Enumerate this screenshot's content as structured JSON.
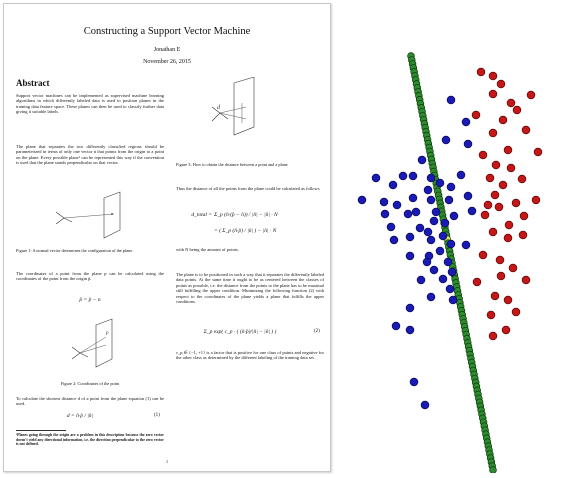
{
  "paper": {
    "title": "Constructing a Support Vector Machine",
    "author": "Jonathan E",
    "date": "November 26, 2015",
    "abstract_heading": "Abstract",
    "abstract_text": "Support vector machines can be implemented as supervised machine learning algorithms in which differently labeled data is used to position planes in the training data feature space. These planes can then be used to classify further data giving it suitable labels.",
    "para_plane": "The plane that separates the two differently classified regions should be parameterized in terms of only one vector n that points from the origin to a point on the plane. Every possible plane¹ can be represented this way if the convention is used that the plane stands perpendicular on that vector.",
    "fig1_caption": "Figure 1: A normal vector determines the configuration of the plane",
    "para_coords": "The coordinates of a point from the plane p can be calculated using the coordinates of the point from the origin p̄.",
    "eq_coords": "p̄ = p̄ − n",
    "fig2_caption": "Figure 2: Coordinates of the point",
    "para_distance": "To calculate the shortest distance d of a point from the plane equation (1) can be used.",
    "eq_distance": "d = n̄·p̄ / |n̄|",
    "eq_distance_num": "(1)",
    "footnote": "¹Planes going through the origin are a problem in this description because the zero vector doesn't yield any directional information, i.e. the direction perpendicular to the zero vector is not defined.",
    "fig3_caption": "Figure 3: How to obtain the distance between a point and a plane",
    "para_total": "Thus the distance of all the points from the plane could be calculated as follows",
    "eq_total_lhs": "d_total =",
    "eq_total_line1": "Σ_p (n̄·(p̄ − n̄)) / |n̄| − |n̄| · N",
    "eq_total_line2": "= ( Σ_p (n̄·p̄) / |n̄| ) − |n̄| · N",
    "para_n": "with N being the amount of points.",
    "para_position": "The plane is to be positioned in such a way that it separates the differently labeled data points. At the same time it ought to be as centered between the classes of points as possible, i.e. the distance from the points to the plane has to be maximal still fulfilling the upper condition. Minimizing the following function (2) with respect to the coordinates of the plane yields a plane that fulfills the upper conditions.",
    "eq_minimize": "Σ_p exp( c_p · ( (n̄·p̄)/|n̄| − |n̄| ) )",
    "eq_minimize_num": "(2)",
    "para_cp": "c_p ∈ {−1, +1} is a factor that is positive for one class of points and negative for the other class as determined by the different labeling of the training data set.",
    "page_number": "1",
    "fig3_label_d": "d",
    "fig2_label_p": "p"
  },
  "colors": {
    "class_a": "#1a1ab5",
    "class_b": "#c41717",
    "boundary": "#2e8b2e",
    "highlight": "#e6e65a"
  },
  "chart_data": {
    "type": "scatter",
    "xlim": [
      0,
      244
    ],
    "ylim": [
      473,
      0
    ],
    "grid": false,
    "series": [
      {
        "values": [
          [
            118,
            100
          ],
          [
            133,
            122
          ],
          [
            113,
            140
          ],
          [
            135,
            144
          ],
          [
            89,
            160
          ],
          [
            70,
            176
          ],
          [
            43,
            178
          ],
          [
            98,
            178
          ],
          [
            80,
            176
          ],
          [
            107,
            183
          ],
          [
            60,
            185
          ],
          [
            95,
            190
          ],
          [
            118,
            187
          ],
          [
            128,
            175
          ],
          [
            135,
            196
          ],
          [
            80,
            198
          ],
          [
            98,
            200
          ],
          [
            116,
            200
          ],
          [
            64,
            205
          ],
          [
            51,
            202
          ],
          [
            29,
            200
          ],
          [
            52,
            214
          ],
          [
            75,
            214
          ],
          [
            83,
            212
          ],
          [
            103,
            212
          ],
          [
            121,
            216
          ],
          [
            139,
            211
          ],
          [
            112,
            223
          ],
          [
            101,
            221
          ],
          [
            95,
            232
          ],
          [
            87,
            228
          ],
          [
            58,
            227
          ],
          [
            61,
            240
          ],
          [
            77,
            237
          ],
          [
            98,
            240
          ],
          [
            110,
            236
          ],
          [
            118,
            244
          ],
          [
            133,
            245
          ],
          [
            107,
            251
          ],
          [
            96,
            256
          ],
          [
            77,
            256
          ],
          [
            94,
            262
          ],
          [
            115,
            262
          ],
          [
            101,
            270
          ],
          [
            119,
            272
          ],
          [
            110,
            279
          ],
          [
            88,
            280
          ],
          [
            117,
            289
          ],
          [
            98,
            297
          ],
          [
            77,
            308
          ],
          [
            120,
            300
          ],
          [
            63,
            326
          ],
          [
            77,
            330
          ],
          [
            81,
            382
          ],
          [
            92,
            405
          ]
        ]
      },
      {
        "values": [
          [
            148,
            72
          ],
          [
            160,
            76
          ],
          [
            168,
            84
          ],
          [
            160,
            94
          ],
          [
            178,
            103
          ],
          [
            198,
            95
          ],
          [
            184,
            110
          ],
          [
            143,
            115
          ],
          [
            170,
            120
          ],
          [
            193,
            130
          ],
          [
            160,
            133
          ],
          [
            150,
            155
          ],
          [
            175,
            150
          ],
          [
            205,
            152
          ],
          [
            163,
            165
          ],
          [
            178,
            168
          ],
          [
            157,
            178
          ],
          [
            170,
            185
          ],
          [
            189,
            179
          ],
          [
            162,
            195
          ],
          [
            155,
            205
          ],
          [
            152,
            215
          ],
          [
            166,
            207
          ],
          [
            183,
            203
          ],
          [
            203,
            200
          ],
          [
            191,
            216
          ],
          [
            176,
            225
          ],
          [
            160,
            232
          ],
          [
            190,
            235
          ],
          [
            175,
            238
          ],
          [
            150,
            255
          ],
          [
            167,
            260
          ],
          [
            180,
            268
          ],
          [
            168,
            276
          ],
          [
            193,
            280
          ],
          [
            144,
            282
          ],
          [
            162,
            296
          ],
          [
            175,
            300
          ],
          [
            183,
            312
          ],
          [
            158,
            315
          ],
          [
            173,
            330
          ],
          [
            160,
            336
          ]
        ]
      }
    ],
    "boundary": {
      "type": "line",
      "values": [
        [
          78,
          56
        ],
        [
          160,
          470
        ]
      ]
    }
  }
}
